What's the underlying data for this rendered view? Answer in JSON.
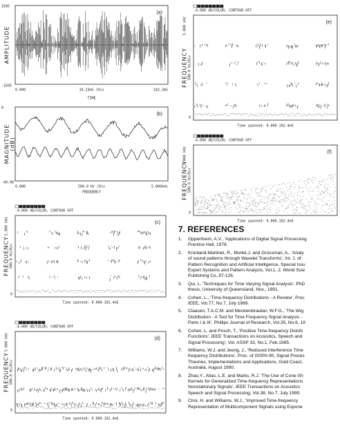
{
  "figures": [
    {
      "label": "(a)",
      "y_axis_label": "AMPLITUDE",
      "y_top": "1695",
      "y_bottom": "-1695",
      "x_left": "0.000",
      "x_mid": "10.23mS /Div",
      "x_right": "102.3mS",
      "x_axis_label": "TIME"
    },
    {
      "label": "(b)",
      "y_axis_label": "MAGNITUDE",
      "y_unit": "(dB)",
      "y_top": "0",
      "y_bottom": "-40.00",
      "x_left": "0.000",
      "x_mid": "500.0 Hz /Div",
      "x_right": "5.000kHz",
      "x_axis_label": "FREQUENCY"
    },
    {
      "label": "(c)",
      "legend": "-4.000 dB/COLOR, CONTOUR OFF",
      "y_top": "5.000 kHz",
      "y_axis_label": "FREQUENCY",
      "y_scale": "500.0 Hz/Div",
      "y_bottom": "0",
      "footer": "Time spanned: 0.000-102.4mS"
    },
    {
      "label": "(d)",
      "legend": "-4.000 dB/COLOR, CONTOUR OFF",
      "y_top": "5.000 kHz",
      "y_axis_label": "FREQUENCY",
      "y_scale": "500.0 Hz/Div",
      "y_bottom": "0",
      "footer": "Time spanned: 0.000-102.4mS"
    },
    {
      "label": "(e)",
      "legend": "-4.000 dB/COLOR, CONTOUR OFF",
      "y_top": "5.000 kHz",
      "y_axis_label": "FREQUENCY",
      "y_scale": "500.0 Hz/Div",
      "y_bottom": "0",
      "footer": "Time spanned: 0.000-102.4mS"
    },
    {
      "label": "(f)",
      "legend": "-4.000 dB/COLOR, CONTOUR OFF",
      "y_top": "5.000 kHz",
      "y_axis_label": "FREQUENCY",
      "y_scale": "500.0 Hz/Div",
      "y_bottom": "0",
      "footer": "Time spanned: 0.000-102.4mS"
    }
  ],
  "references": {
    "heading": "7. REFERENCES",
    "items": [
      {
        "number": "1.",
        "lines": [
          "Oppenheim, A.V., 'Applications of Digital Signal Processing",
          "Prentice Hall, 1978."
        ]
      },
      {
        "number": "2.",
        "lines": [
          "Kronland-Martinet, R., Morlet,J. and Grossman, A., 'Analy",
          "of sound patterns through Wavelet Transforms', Int. J. of",
          "Pattern Recognition and Artificial Intelligence, Special Issu",
          "Expert Systems and Pattern Analysis, Vol.1, 2. World Scie",
          "Publishing Co.,97-126."
        ]
      },
      {
        "number": "3.",
        "lines": [
          "Qui, L. 'Techniques for Time Varying Signal Analysis', PhD",
          "thesis, University of Queensland, Nov., 1991."
        ]
      },
      {
        "number": "4.",
        "lines": [
          "Cohen, L., 'Time-frequency Distributions - A Review', Proc",
          "IEEE, Vol.77, No.7, July 1989."
        ]
      },
      {
        "number": "5.",
        "lines": [
          "Claasen, T.A.C.M. and Mecklenbrauker, W.F.G., 'The Wig",
          "Distribution - A Tool for Time Frequency Signal Analysis -",
          "Parts I & III', Phillips Journal of Research, Vol.35, No.6, 19"
        ]
      },
      {
        "number": "6.",
        "lines": [
          "Cohen, L. and Posch, T., 'Positive Time-frequency Distrib",
          "Functions', IEEE Transactions on Acoustics, Speech and",
          "Signal Processing', Vol. ASSP 33, No.1, Feb.1985."
        ]
      },
      {
        "number": "7.",
        "lines": [
          "Williams, W.J. and Jeong, J., 'Reduced Interference Time",
          "frequency Distributions', Proc. of ISSPA 90, Signal Proces",
          "Theories, Implementations and Applications, Gold Coast,",
          "Australia, August 1990."
        ]
      },
      {
        "number": "8.",
        "lines": [
          "Zhao,Y., Atlas, L.E. and Marks, R.J. 'The Use of Cone-Sh",
          "Kernels for Generalized Time-frequency Representations",
          "Nonstationary Signals', IEEE Transactions on Acoustics",
          "Speech and Signal Processing, Vol.38, No.7, July 1990."
        ]
      },
      {
        "number": "9.",
        "lines": [
          "Choi, H. and Williams, W.J., 'Improved Time-frequency",
          "Representation of Multicomponent Signals using Expone"
        ]
      }
    ]
  }
}
